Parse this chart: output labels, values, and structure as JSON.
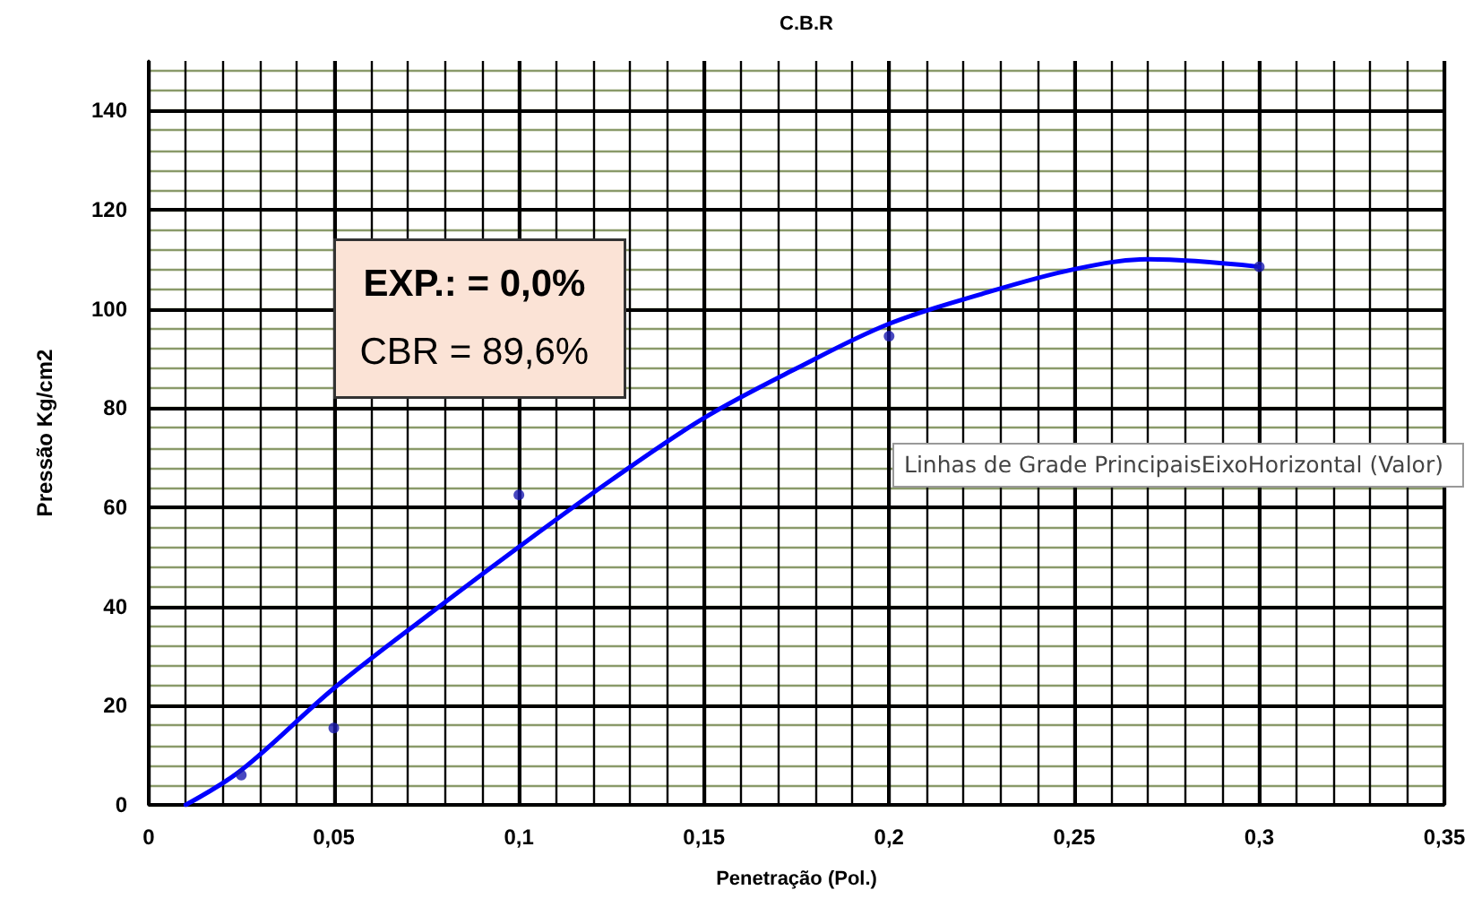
{
  "chart_data": {
    "type": "scatter",
    "title": "C.B.R",
    "xlabel": "Penetração (Pol.)",
    "ylabel": "Pressão Kg/cm2",
    "annotations": [
      "EXP.: = 0,0%",
      "CBR = 89,6%",
      "Linhas de Grade PrincipaisEixoHorizontal (Valor)"
    ],
    "xlim": [
      0,
      0.35
    ],
    "xticks": [
      0,
      {
        "value": 0.01,
        "label": null
      },
      {
        "value": 0.02,
        "label": null
      },
      {
        "value": 0.03,
        "label": null
      },
      {
        "value": 0.04,
        "label": null
      },
      {
        "value": 0.05,
        "label": "0,05"
      },
      {
        "value": 0.06,
        "label": null
      },
      {
        "value": 0.07,
        "label": null
      },
      {
        "value": 0.08,
        "label": null
      },
      {
        "value": 0.09,
        "label": null
      },
      {
        "value": 0.1,
        "label": "0,1"
      },
      {
        "value": 0.11,
        "label": null
      },
      {
        "value": 0.12,
        "label": null
      },
      {
        "value": 0.13,
        "label": null
      },
      {
        "value": 0.14,
        "label": null
      },
      {
        "value": 0.15,
        "label": "0,15"
      },
      {
        "value": 0.16,
        "label": null
      },
      {
        "value": 0.17,
        "label": null
      },
      {
        "value": 0.18,
        "label": null
      },
      {
        "value": 0.19,
        "label": null
      },
      {
        "value": 0.2,
        "label": "0,2"
      },
      {
        "value": 0.21,
        "label": null
      },
      {
        "value": 0.22,
        "label": null
      },
      {
        "value": 0.23,
        "label": null
      },
      {
        "value": 0.24,
        "label": null
      },
      {
        "value": 0.25,
        "label": "0,25"
      },
      {
        "value": 0.26,
        "label": null
      },
      {
        "value": 0.27,
        "label": null
      },
      {
        "value": 0.28,
        "label": null
      },
      {
        "value": 0.29,
        "label": null
      },
      {
        "value": 0.3,
        "label": "0,3"
      },
      {
        "value": 0.31,
        "label": null
      },
      {
        "value": 0.32,
        "label": null
      },
      {
        "value": 0.33,
        "label": null
      },
      {
        "value": 0.34,
        "label": null
      },
      {
        "value": 0.35,
        "label": "0,35"
      }
    ],
    "ylim": [
      0,
      150
    ],
    "yticks": [
      0,
      {
        "value": 4,
        "label": null
      },
      {
        "value": 8,
        "label": null
      },
      {
        "value": 12,
        "label": null
      },
      {
        "value": 16,
        "label": null
      },
      20,
      {
        "value": 24,
        "label": null
      },
      {
        "value": 28,
        "label": null
      },
      {
        "value": 32,
        "label": null
      },
      {
        "value": 36,
        "label": null
      },
      40,
      {
        "value": 44,
        "label": null
      },
      {
        "value": 48,
        "label": null
      },
      {
        "value": 52,
        "label": null
      },
      {
        "value": 56,
        "label": null
      },
      60,
      {
        "value": 64,
        "label": null
      },
      {
        "value": 68,
        "label": null
      },
      {
        "value": 72,
        "label": null
      },
      {
        "value": 76,
        "label": null
      },
      80,
      {
        "value": 84,
        "label": null
      },
      {
        "value": 88,
        "label": null
      },
      {
        "value": 92,
        "label": null
      },
      {
        "value": 96,
        "label": null
      },
      100,
      {
        "value": 104,
        "label": null
      },
      {
        "value": 108,
        "label": null
      },
      {
        "value": 112,
        "label": null
      },
      {
        "value": 116,
        "label": null
      },
      120,
      {
        "value": 124,
        "label": null
      },
      {
        "value": 128,
        "label": null
      },
      {
        "value": 132,
        "label": null
      },
      {
        "value": 136,
        "label": null
      },
      140,
      {
        "value": 144,
        "label": null
      },
      {
        "value": 148,
        "label": null
      }
    ],
    "grid": true,
    "series": [
      {
        "type": "scatter",
        "color": "#1a1ab0",
        "marker": "circle",
        "x": [
          0.025,
          0.05,
          0.1,
          0.2,
          0.3
        ],
        "values": [
          6,
          15.5,
          62.5,
          94.5,
          108.5
        ]
      },
      {
        "type": "line",
        "color": "#0000ff",
        "marker": "none",
        "line_style": "solid",
        "x": [
          0.01,
          0.025,
          0.05,
          0.075,
          0.1,
          0.125,
          0.15,
          0.175,
          0.2,
          0.225,
          0.25,
          0.27,
          0.3
        ],
        "values": [
          0,
          7,
          23.5,
          38,
          52,
          65.5,
          78,
          88,
          97,
          103,
          108,
          110,
          108.5
        ]
      }
    ]
  }
}
